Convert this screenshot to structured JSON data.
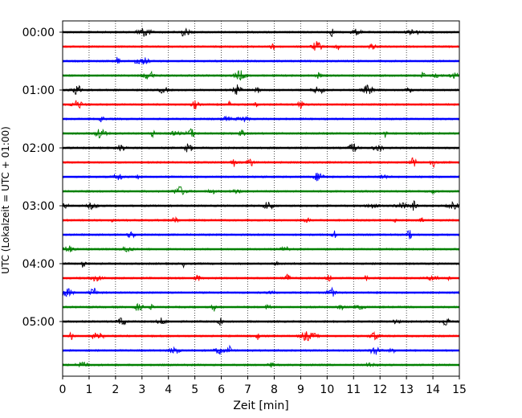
{
  "chart_data": {
    "type": "line",
    "title": "",
    "xlabel": "Zeit  [min]",
    "ylabel": "UTC (Lokalzeit = UTC + 01:00)",
    "xlim": [
      0,
      15
    ],
    "x_ticks": [
      0,
      1,
      2,
      3,
      4,
      5,
      6,
      7,
      8,
      9,
      10,
      11,
      12,
      13,
      14,
      15
    ],
    "x_tick_labels": [
      "0",
      "1",
      "2",
      "3",
      "4",
      "5",
      "6",
      "7",
      "8",
      "9",
      "10",
      "11",
      "12",
      "13",
      "14",
      "15"
    ],
    "y_tick_labels": [
      "00:00",
      "01:00",
      "02:00",
      "03:00",
      "04:00",
      "05:00"
    ],
    "y_tick_rows": [
      0,
      4,
      8,
      12,
      16,
      20
    ],
    "vertical_grid": true,
    "grid_style": "dotted",
    "row_interval_minutes": 15,
    "color_cycle": [
      "#000000",
      "#ff0000",
      "#0000ff",
      "#008000"
    ],
    "rows": [
      {
        "start": "00:00",
        "color": "#000000"
      },
      {
        "start": "00:15",
        "color": "#ff0000"
      },
      {
        "start": "00:30",
        "color": "#0000ff"
      },
      {
        "start": "00:45",
        "color": "#008000"
      },
      {
        "start": "01:00",
        "color": "#000000"
      },
      {
        "start": "01:15",
        "color": "#ff0000"
      },
      {
        "start": "01:30",
        "color": "#0000ff"
      },
      {
        "start": "01:45",
        "color": "#008000"
      },
      {
        "start": "02:00",
        "color": "#000000"
      },
      {
        "start": "02:15",
        "color": "#ff0000"
      },
      {
        "start": "02:30",
        "color": "#0000ff"
      },
      {
        "start": "02:45",
        "color": "#008000"
      },
      {
        "start": "03:00",
        "color": "#000000"
      },
      {
        "start": "03:15",
        "color": "#ff0000"
      },
      {
        "start": "03:30",
        "color": "#0000ff"
      },
      {
        "start": "03:45",
        "color": "#008000"
      },
      {
        "start": "04:00",
        "color": "#000000"
      },
      {
        "start": "04:15",
        "color": "#ff0000"
      },
      {
        "start": "04:30",
        "color": "#0000ff"
      },
      {
        "start": "04:45",
        "color": "#008000"
      },
      {
        "start": "05:00",
        "color": "#000000"
      },
      {
        "start": "05:15",
        "color": "#ff0000"
      },
      {
        "start": "05:30",
        "color": "#0000ff"
      },
      {
        "start": "05:45",
        "color": "#008000"
      }
    ]
  }
}
